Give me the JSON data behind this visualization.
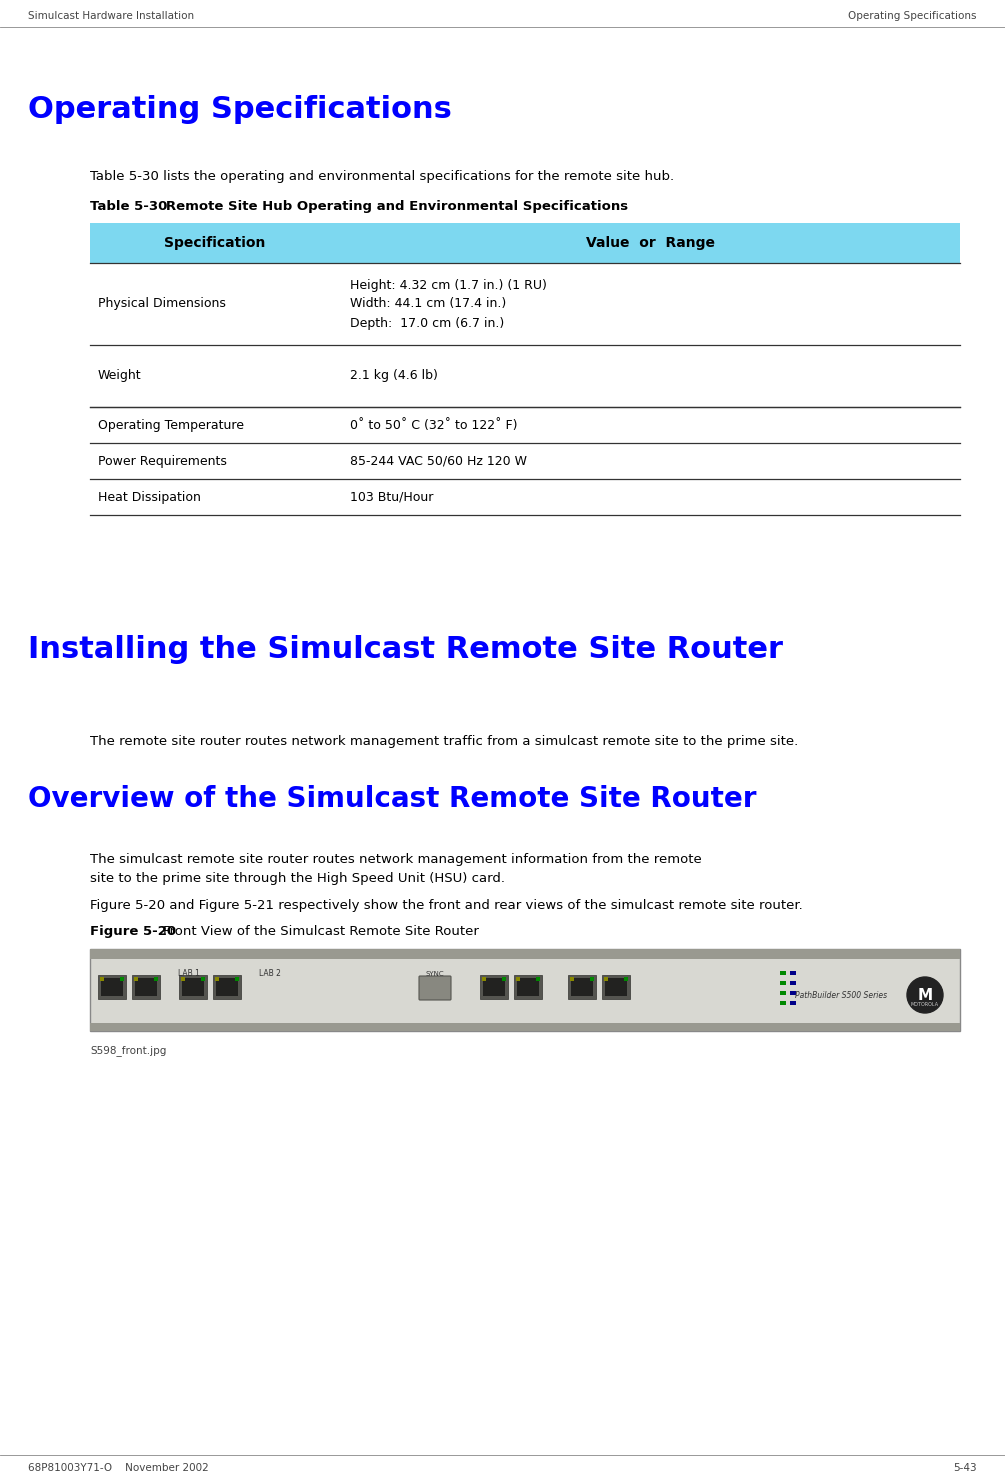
{
  "header_left": "Simulcast Hardware Installation",
  "header_right": "Operating Specifications",
  "section_title1": "Operating Specifications",
  "intro_text": "Table 5-30 lists the operating and environmental specifications for the remote site hub.",
  "table_caption_bold": "Table 5-30",
  "table_caption_normal": "   Remote Site Hub Operating and Environmental Specifications",
  "table_header": [
    "Specification",
    "Value  or  Range"
  ],
  "table_rows": [
    [
      "Physical Dimensions",
      "Height: 4.32 cm (1.7 in.) (1 RU)\nWidth: 44.1 cm (17.4 in.)\nDepth:  17.0 cm (6.7 in.)"
    ],
    [
      "Weight",
      "2.1 kg (4.6 lb)"
    ],
    [
      "Operating Temperature",
      "0˚ to 50˚ C (32˚ to 122˚ F)"
    ],
    [
      "Power Requirements",
      "85-244 VAC 50/60 Hz 120 W"
    ],
    [
      "Heat Dissipation",
      "103 Btu/Hour"
    ]
  ],
  "table_header_bg": "#7DD8F0",
  "section_title2": "Installing the Simulcast Remote Site Router",
  "para1": "The remote site router routes network management traffic from a simulcast remote site to the prime site.",
  "section_title3": "Overview of the Simulcast Remote Site Router",
  "para2a": "The simulcast remote site router routes network management information from the remote",
  "para2b": "site to the prime site through the High Speed Unit (HSU) card.",
  "para3": "Figure 5-20 and Figure 5-21 respectively show the front and rear views of the simulcast remote site router.",
  "figure_caption_bold": "Figure 5-20",
  "figure_caption_normal": "    Front View of the Simulcast Remote Site Router",
  "image_label": "S598_front.jpg",
  "footer_left": "68P81003Y71-O    November 2002",
  "footer_right": "5-43",
  "title_color": "#0000FF",
  "bg_color": "#FFFFFF",
  "text_color": "#000000"
}
